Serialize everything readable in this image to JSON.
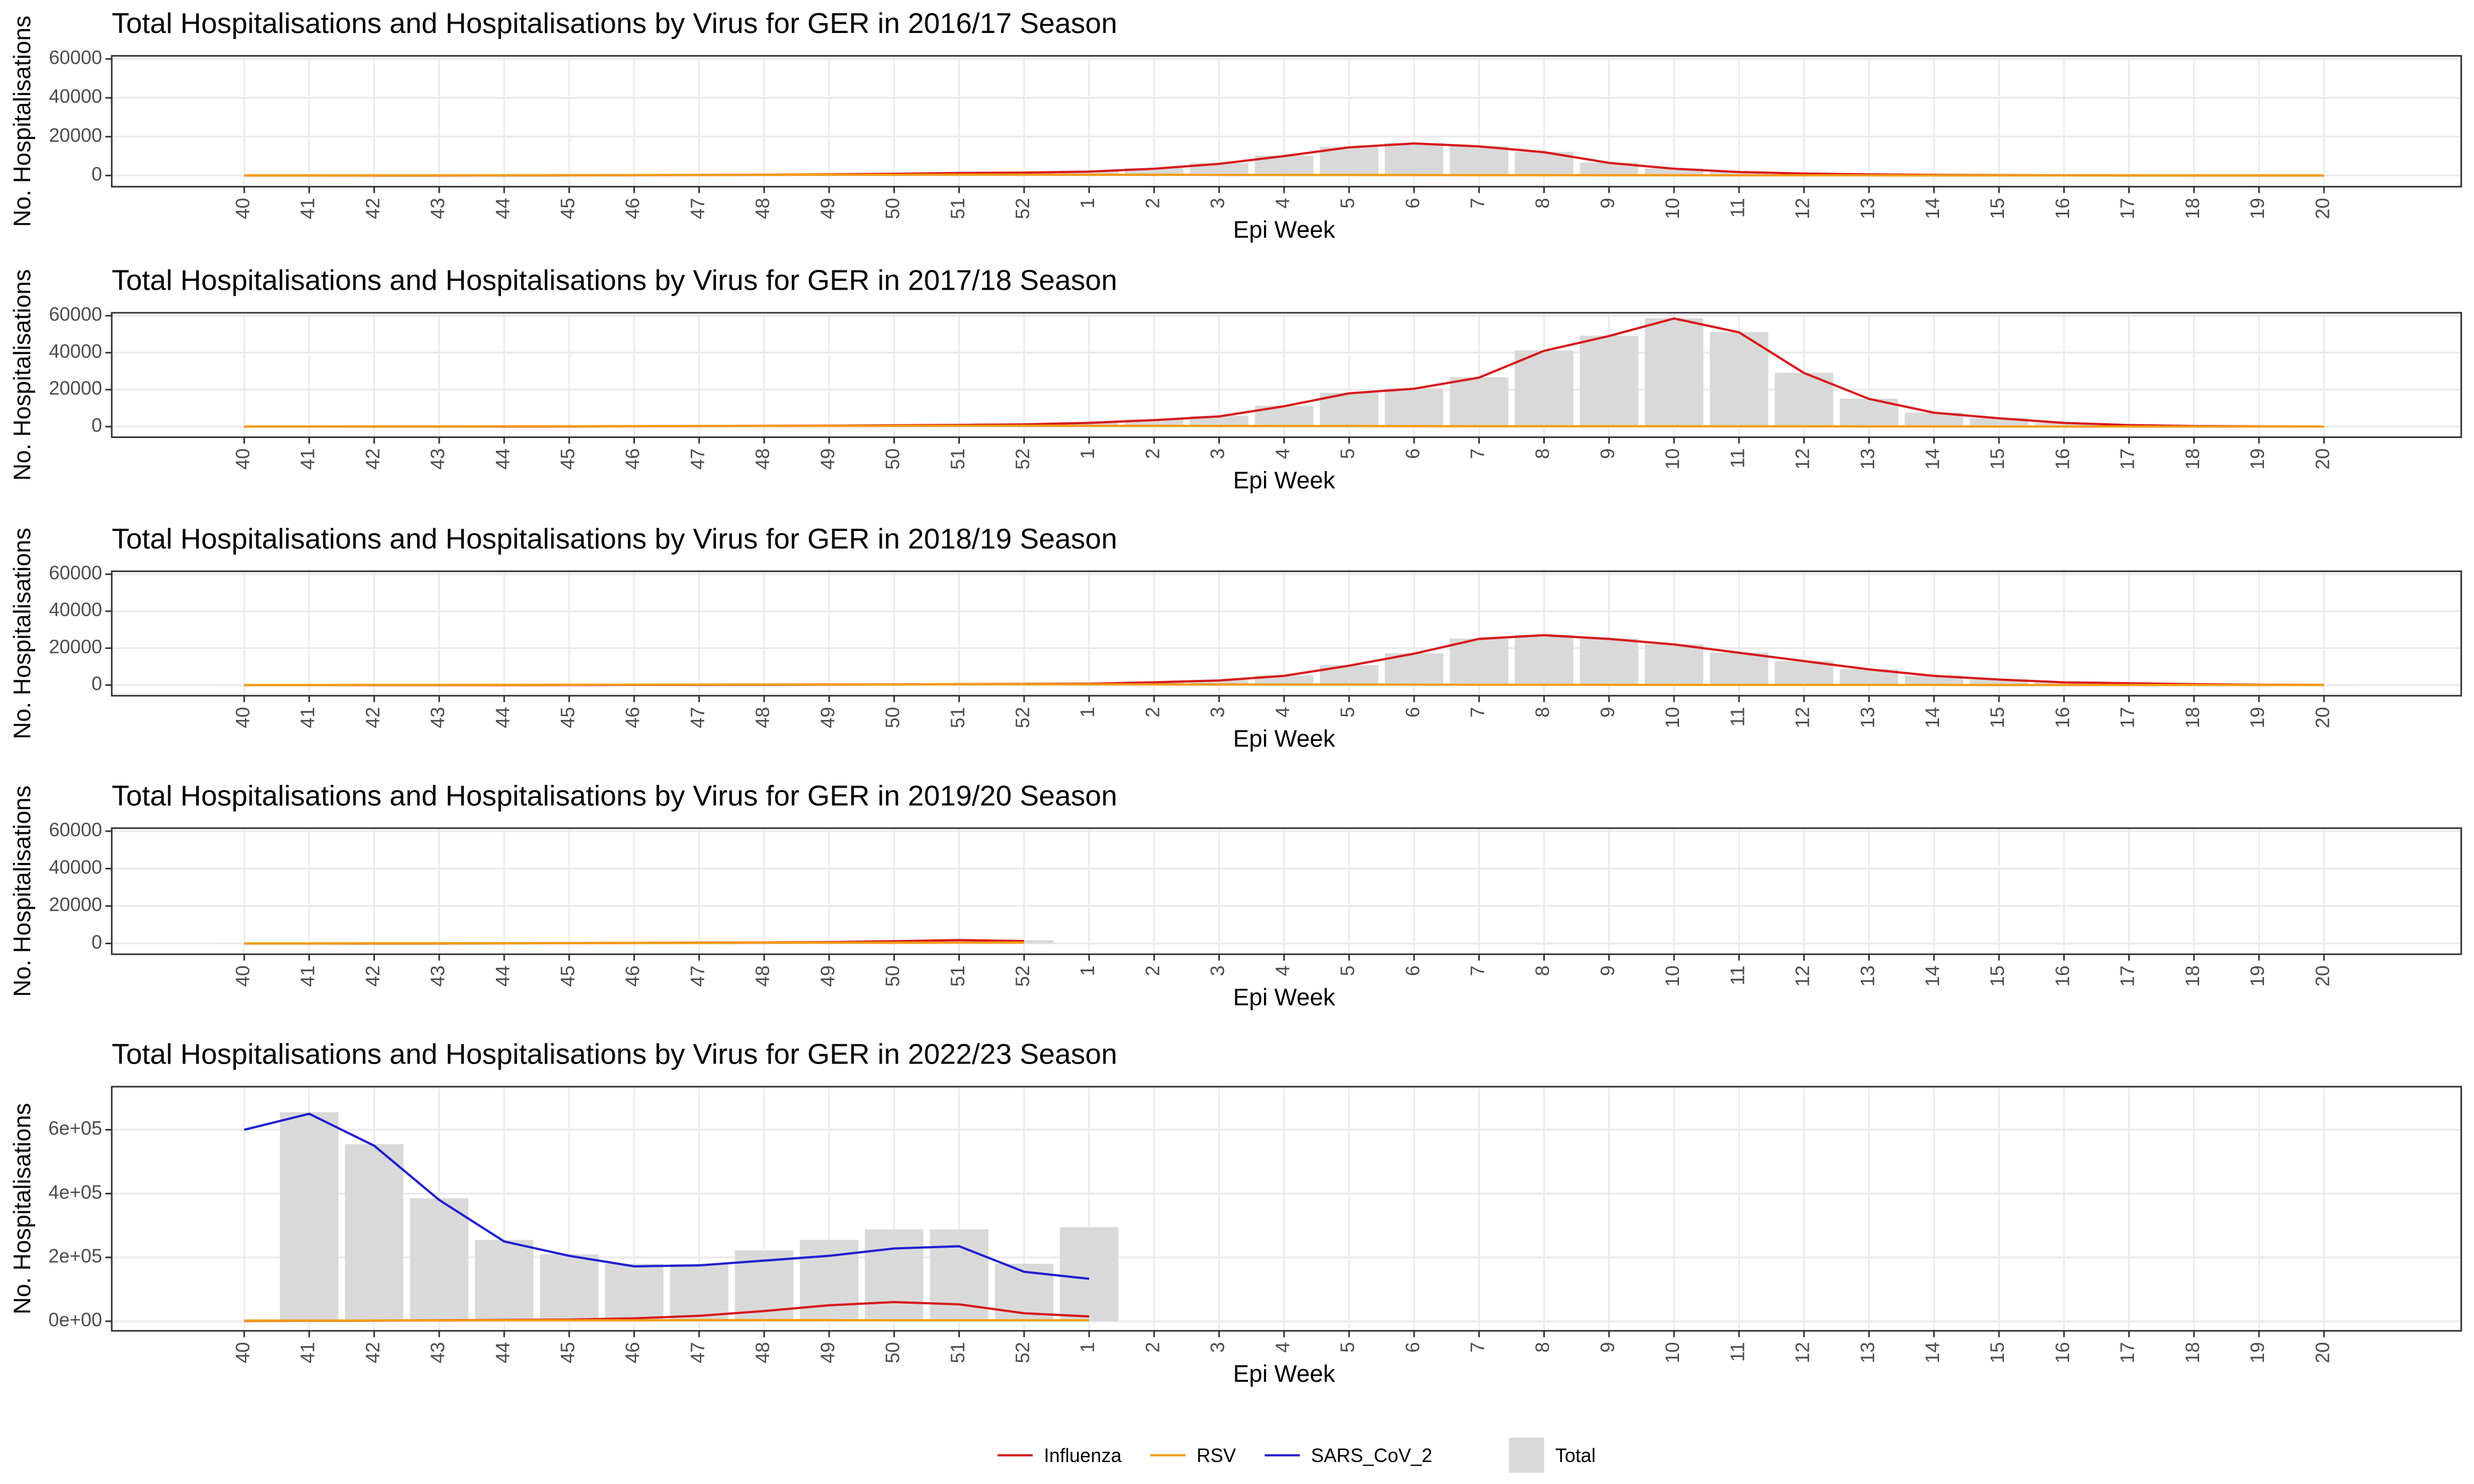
{
  "chart_data": [
    {
      "type": "combo",
      "title": "Total Hospitalisations and Hospitalisations by Virus for GER in 2016/17 Season",
      "x_label": "Epi Week",
      "y_label": "No. Hospitalisations",
      "categories": [
        "40",
        "41",
        "42",
        "43",
        "44",
        "45",
        "46",
        "47",
        "48",
        "49",
        "50",
        "51",
        "52",
        "1",
        "2",
        "3",
        "4",
        "5",
        "6",
        "7",
        "8",
        "9",
        "10",
        "11",
        "12",
        "13",
        "14",
        "15",
        "16",
        "17",
        "18",
        "19",
        "20"
      ],
      "ylim": [
        -5750,
        61600
      ],
      "yticks": [
        0,
        20000,
        40000,
        60000
      ],
      "grid": true,
      "series": [
        {
          "name": "Influenza",
          "type": "line",
          "color": "#d7191c",
          "values": [
            0,
            0,
            0,
            0,
            50,
            100,
            200,
            300,
            400,
            600,
            900,
            1300,
            1500,
            2000,
            3500,
            6000,
            10000,
            14500,
            16500,
            15000,
            12000,
            6500,
            3500,
            1800,
            1000,
            600,
            300,
            200,
            100,
            50,
            0,
            0,
            0
          ]
        },
        {
          "name": "RSV",
          "type": "line",
          "color": "#f39c12",
          "values": [
            50,
            50,
            100,
            100,
            150,
            200,
            250,
            300,
            350,
            400,
            400,
            450,
            450,
            400,
            400,
            350,
            300,
            300,
            250,
            200,
            200,
            150,
            150,
            100,
            100,
            100,
            50,
            50,
            50,
            50,
            50,
            50,
            50
          ]
        },
        {
          "name": "Total",
          "type": "bar",
          "color": "#d9d9d9",
          "values": [
            50,
            50,
            100,
            100,
            200,
            300,
            450,
            600,
            750,
            1000,
            1300,
            1750,
            1950,
            2400,
            3900,
            6350,
            10300,
            14800,
            16750,
            15200,
            12200,
            6650,
            3650,
            1900,
            1100,
            700,
            350,
            250,
            150,
            100,
            50,
            50,
            50
          ]
        }
      ]
    },
    {
      "type": "combo",
      "title": "Total Hospitalisations and Hospitalisations by Virus for GER in 2017/18 Season",
      "x_label": "Epi Week",
      "y_label": "No. Hospitalisations",
      "categories": [
        "40",
        "41",
        "42",
        "43",
        "44",
        "45",
        "46",
        "47",
        "48",
        "49",
        "50",
        "51",
        "52",
        "1",
        "2",
        "3",
        "4",
        "5",
        "6",
        "7",
        "8",
        "9",
        "10",
        "11",
        "12",
        "13",
        "14",
        "15",
        "16",
        "17",
        "18",
        "19",
        "20"
      ],
      "ylim": [
        -5750,
        61600
      ],
      "yticks": [
        0,
        20000,
        40000,
        60000
      ],
      "grid": true,
      "series": [
        {
          "name": "Influenza",
          "type": "line",
          "color": "#d7191c",
          "values": [
            0,
            0,
            0,
            0,
            50,
            100,
            200,
            300,
            400,
            500,
            700,
            900,
            1200,
            2000,
            3500,
            5500,
            11000,
            18000,
            20500,
            26500,
            41000,
            49000,
            58500,
            51000,
            29000,
            15000,
            7500,
            4500,
            2000,
            800,
            300,
            100,
            50
          ]
        },
        {
          "name": "RSV",
          "type": "line",
          "color": "#f39c12",
          "values": [
            50,
            50,
            100,
            100,
            150,
            200,
            250,
            300,
            350,
            400,
            400,
            450,
            450,
            400,
            400,
            350,
            300,
            300,
            250,
            200,
            200,
            200,
            200,
            150,
            150,
            100,
            100,
            50,
            50,
            50,
            50,
            50,
            50
          ]
        },
        {
          "name": "Total",
          "type": "bar",
          "color": "#d9d9d9",
          "values": [
            50,
            50,
            100,
            100,
            200,
            300,
            450,
            600,
            750,
            900,
            1100,
            1350,
            1650,
            2400,
            3900,
            5850,
            11300,
            18300,
            20750,
            26700,
            41200,
            49200,
            58700,
            51150,
            29150,
            15100,
            7600,
            4550,
            2050,
            850,
            350,
            150,
            100
          ]
        }
      ]
    },
    {
      "type": "combo",
      "title": "Total Hospitalisations and Hospitalisations by Virus for GER in 2018/19 Season",
      "x_label": "Epi Week",
      "y_label": "No. Hospitalisations",
      "categories": [
        "40",
        "41",
        "42",
        "43",
        "44",
        "45",
        "46",
        "47",
        "48",
        "49",
        "50",
        "51",
        "52",
        "1",
        "2",
        "3",
        "4",
        "5",
        "6",
        "7",
        "8",
        "9",
        "10",
        "11",
        "12",
        "13",
        "14",
        "15",
        "16",
        "17",
        "18",
        "19",
        "20"
      ],
      "ylim": [
        -5750,
        61600
      ],
      "yticks": [
        0,
        20000,
        40000,
        60000
      ],
      "grid": true,
      "series": [
        {
          "name": "Influenza",
          "type": "line",
          "color": "#d7191c",
          "values": [
            0,
            0,
            0,
            0,
            0,
            50,
            100,
            150,
            200,
            300,
            400,
            500,
            600,
            700,
            1500,
            2500,
            5000,
            10500,
            17000,
            25000,
            27000,
            25000,
            22000,
            17500,
            13000,
            8500,
            5000,
            3000,
            1500,
            1000,
            500,
            200,
            100
          ]
        },
        {
          "name": "RSV",
          "type": "line",
          "color": "#f39c12",
          "values": [
            50,
            50,
            100,
            100,
            150,
            200,
            250,
            300,
            350,
            400,
            400,
            450,
            450,
            400,
            400,
            350,
            300,
            300,
            250,
            200,
            200,
            150,
            150,
            100,
            100,
            100,
            100,
            50,
            50,
            50,
            50,
            50,
            50
          ]
        },
        {
          "name": "Total",
          "type": "bar",
          "color": "#d9d9d9",
          "values": [
            50,
            50,
            100,
            100,
            150,
            250,
            350,
            450,
            550,
            700,
            800,
            950,
            1050,
            1100,
            1900,
            2850,
            5300,
            10800,
            17250,
            25200,
            27200,
            25150,
            22150,
            17600,
            13100,
            8600,
            5100,
            3050,
            1550,
            1050,
            550,
            250,
            150
          ]
        }
      ]
    },
    {
      "type": "combo",
      "title": "Total Hospitalisations and Hospitalisations by Virus for GER in 2019/20 Season",
      "x_label": "Epi Week",
      "y_label": "No. Hospitalisations",
      "categories": [
        "40",
        "41",
        "42",
        "43",
        "44",
        "45",
        "46",
        "47",
        "48",
        "49",
        "50",
        "51",
        "52",
        "1",
        "2",
        "3",
        "4",
        "5",
        "6",
        "7",
        "8",
        "9",
        "10",
        "11",
        "12",
        "13",
        "14",
        "15",
        "16",
        "17",
        "18",
        "19",
        "20"
      ],
      "ylim": [
        -5750,
        61600
      ],
      "yticks": [
        0,
        20000,
        40000,
        60000
      ],
      "grid": true,
      "series": [
        {
          "name": "Influenza",
          "type": "line",
          "color": "#d7191c",
          "values": [
            0,
            0,
            0,
            0,
            100,
            200,
            300,
            400,
            500,
            700,
            1200,
            1800,
            1300,
            null,
            null,
            null,
            null,
            null,
            null,
            null,
            null,
            null,
            null,
            null,
            null,
            null,
            null,
            null,
            null,
            null,
            null,
            null,
            null
          ]
        },
        {
          "name": "RSV",
          "type": "line",
          "color": "#f39c12",
          "values": [
            50,
            50,
            100,
            100,
            150,
            200,
            250,
            300,
            350,
            400,
            400,
            450,
            450,
            null,
            null,
            null,
            null,
            null,
            null,
            null,
            null,
            null,
            null,
            null,
            null,
            null,
            null,
            null,
            null,
            null,
            null,
            null,
            null
          ]
        },
        {
          "name": "Total",
          "type": "bar",
          "color": "#d9d9d9",
          "values": [
            50,
            50,
            100,
            100,
            250,
            400,
            550,
            700,
            850,
            1100,
            1600,
            2250,
            1750,
            null,
            null,
            null,
            null,
            null,
            null,
            null,
            null,
            null,
            null,
            null,
            null,
            null,
            null,
            null,
            null,
            null,
            null,
            null,
            null
          ]
        }
      ]
    },
    {
      "type": "combo",
      "title": "Total Hospitalisations and Hospitalisations by Virus for GER in 2022/23 Season",
      "x_label": "Epi Week",
      "y_label": "No. Hospitalisations",
      "categories": [
        "40",
        "41",
        "42",
        "43",
        "44",
        "45",
        "46",
        "47",
        "48",
        "49",
        "50",
        "51",
        "52",
        "1",
        "2",
        "3",
        "4",
        "5",
        "6",
        "7",
        "8",
        "9",
        "10",
        "11",
        "12",
        "13",
        "14",
        "15",
        "16",
        "17",
        "18",
        "19",
        "20"
      ],
      "ylim": [
        -30000,
        735000
      ],
      "yticks": [
        {
          "value": 0,
          "label": "0e+00"
        },
        {
          "value": 200000,
          "label": "2e+05"
        },
        {
          "value": 400000,
          "label": "4e+05"
        },
        {
          "value": 600000,
          "label": "6e+05"
        }
      ],
      "grid": true,
      "series": [
        {
          "name": "Influenza",
          "type": "line",
          "color": "#d7191c",
          "values": [
            1000,
            1500,
            2000,
            3000,
            4000,
            5000,
            9000,
            17000,
            32000,
            50000,
            60000,
            53000,
            25000,
            15000,
            null,
            null,
            null,
            null,
            null,
            null,
            null,
            null,
            null,
            null,
            null,
            null,
            null,
            null,
            null,
            null,
            null,
            null,
            null
          ]
        },
        {
          "name": "RSV",
          "type": "line",
          "color": "#f39c12",
          "values": [
            2000,
            2000,
            2500,
            2500,
            3000,
            3000,
            3000,
            3500,
            3500,
            3500,
            3000,
            3000,
            3000,
            3000,
            null,
            null,
            null,
            null,
            null,
            null,
            null,
            null,
            null,
            null,
            null,
            null,
            null,
            null,
            null,
            null,
            null,
            null,
            null
          ]
        },
        {
          "name": "SARS_CoV_2",
          "type": "line",
          "color": "#1f1fd0",
          "values": [
            600000,
            650000,
            550000,
            380000,
            250000,
            205000,
            172000,
            175000,
            190000,
            205000,
            228000,
            235000,
            155000,
            133000,
            null,
            null,
            null,
            null,
            null,
            null,
            null,
            null,
            null,
            null,
            null,
            null,
            null,
            null,
            null,
            null,
            null,
            null,
            null
          ]
        },
        {
          "name": "Total",
          "type": "bar",
          "color": "#d9d9d9",
          "values": [
            null,
            655000,
            555000,
            385000,
            255000,
            210000,
            180000,
            180000,
            222000,
            255000,
            288000,
            288000,
            180000,
            295000,
            null,
            null,
            null,
            null,
            null,
            null,
            null,
            null,
            null,
            null,
            null,
            null,
            null,
            null,
            null,
            null,
            null,
            null,
            null
          ]
        }
      ]
    }
  ]
}
